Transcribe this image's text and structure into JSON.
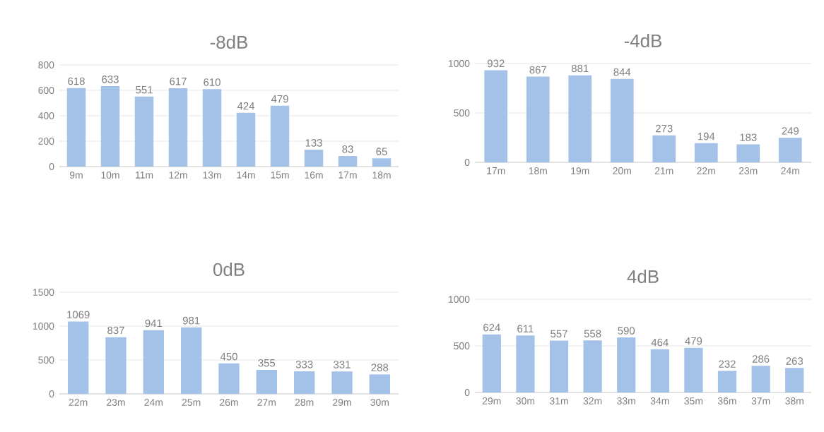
{
  "chart_data": [
    {
      "type": "bar",
      "title": "-8dB",
      "categories": [
        "9m",
        "10m",
        "11m",
        "12m",
        "13m",
        "14m",
        "15m",
        "16m",
        "17m",
        "18m"
      ],
      "values": [
        618,
        633,
        551,
        617,
        610,
        424,
        479,
        133,
        83,
        65
      ],
      "color": "#a4c2e8",
      "ylim": [
        0,
        800
      ],
      "yticks": [
        0,
        200,
        400,
        600,
        800
      ],
      "grid": "y",
      "data_labels": true
    },
    {
      "type": "bar",
      "title": "-4dB",
      "categories": [
        "17m",
        "18m",
        "19m",
        "20m",
        "21m",
        "22m",
        "23m",
        "24m"
      ],
      "values": [
        932,
        867,
        881,
        844,
        273,
        194,
        183,
        249
      ],
      "color": "#a4c2e8",
      "ylim": [
        0,
        1000
      ],
      "yticks": [
        0,
        500,
        1000
      ],
      "grid": "y",
      "data_labels": true
    },
    {
      "type": "bar",
      "title": "0dB",
      "categories": [
        "22m",
        "23m",
        "24m",
        "25m",
        "26m",
        "27m",
        "28m",
        "29m",
        "30m"
      ],
      "values": [
        1069,
        837,
        941,
        981,
        450,
        355,
        333,
        331,
        288
      ],
      "color": "#a4c2e8",
      "ylim": [
        0,
        1500
      ],
      "yticks": [
        0,
        500,
        1000,
        1500
      ],
      "grid": "y",
      "data_labels": true
    },
    {
      "type": "bar",
      "title": "4dB",
      "categories": [
        "29m",
        "30m",
        "31m",
        "32m",
        "33m",
        "34m",
        "35m",
        "36m",
        "37m",
        "38m"
      ],
      "values": [
        624,
        611,
        557,
        558,
        590,
        464,
        479,
        232,
        286,
        263
      ],
      "color": "#a4c2e8",
      "ylim": [
        0,
        1000
      ],
      "yticks": [
        0,
        500,
        1000
      ],
      "grid": "y",
      "data_labels": true
    }
  ]
}
